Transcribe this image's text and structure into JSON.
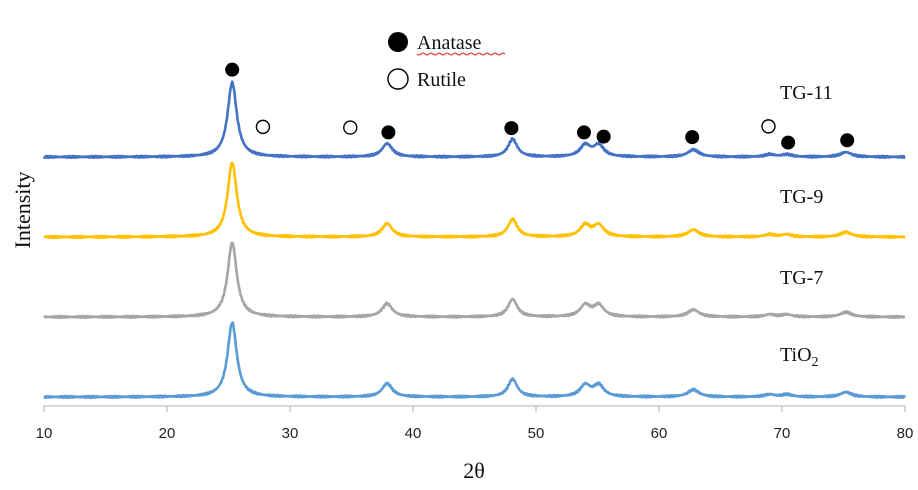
{
  "chart_data": {
    "type": "line",
    "xlabel": "2θ",
    "ylabel": "Intensity",
    "xlim": [
      10,
      80
    ],
    "x_ticks": [
      10,
      20,
      30,
      40,
      50,
      60,
      70,
      80
    ],
    "y_ticks_shown": false,
    "legend": {
      "placement": "top-center",
      "entries": [
        {
          "label": "Anatase",
          "marker": "filled-circle"
        },
        {
          "label": "Rutile",
          "marker": "open-circle"
        }
      ]
    },
    "series": [
      {
        "name": "TG-11",
        "color": "#4472C4",
        "baseline": 3.0
      },
      {
        "name": "TG-9",
        "color": "#FFC000",
        "baseline": 2.0
      },
      {
        "name": "TG-7",
        "color": "#A5A5A5",
        "baseline": 1.0
      },
      {
        "name": "TiO",
        "subscript": "2",
        "color": "#5B9BD5",
        "baseline": 0.0
      }
    ],
    "peaks": [
      {
        "x": 25.3,
        "height": 1.55,
        "width": 0.45
      },
      {
        "x": 37.9,
        "height": 0.28,
        "width": 0.5
      },
      {
        "x": 48.1,
        "height": 0.37,
        "width": 0.45
      },
      {
        "x": 54.0,
        "height": 0.24,
        "width": 0.5
      },
      {
        "x": 55.1,
        "height": 0.24,
        "width": 0.5
      },
      {
        "x": 62.8,
        "height": 0.15,
        "width": 0.55
      },
      {
        "x": 69.0,
        "height": 0.05,
        "width": 0.5
      },
      {
        "x": 70.4,
        "height": 0.05,
        "width": 0.5
      },
      {
        "x": 75.2,
        "height": 0.1,
        "width": 0.55
      }
    ],
    "anatase_markers": [
      25.3,
      38.0,
      48.0,
      53.9,
      55.5,
      62.7,
      70.5,
      75.3
    ],
    "rutile_markers": [
      27.8,
      34.9,
      68.9
    ]
  }
}
